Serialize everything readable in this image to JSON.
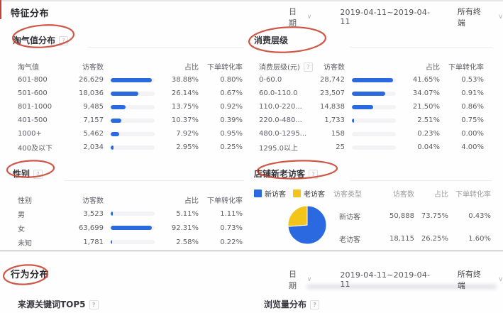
{
  "misc": {
    "help": "?"
  },
  "colors": {
    "accent_blue": "#2b69e0",
    "accent_yellow": "#f3c51a",
    "annotation_red": "#c8402f"
  },
  "header": {
    "title": "特征分布",
    "date_label": "日期",
    "date_range": "2019-04-11~2019-04-11",
    "terminal": "所有终端"
  },
  "panels": {
    "taoqi": {
      "title": "淘气值分布",
      "columns": [
        "淘气值",
        "访客数",
        "占比",
        "下单转化率"
      ],
      "rows": [
        {
          "label": "601-800",
          "visitors": "26,629",
          "bar": 38.88,
          "pct": "38.88%",
          "conv": "0.80%"
        },
        {
          "label": "501-600",
          "visitors": "18,036",
          "bar": 26.14,
          "pct": "26.14%",
          "conv": "0.67%"
        },
        {
          "label": "801-1000",
          "visitors": "9,485",
          "bar": 13.75,
          "pct": "13.75%",
          "conv": "0.92%"
        },
        {
          "label": "401-500",
          "visitors": "7,157",
          "bar": 10.37,
          "pct": "10.37%",
          "conv": "0.39%"
        },
        {
          "label": "1000+",
          "visitors": "5,462",
          "bar": 7.92,
          "pct": "7.92%",
          "conv": "0.95%"
        },
        {
          "label": "400及以下",
          "visitors": "2,034",
          "bar": 2.95,
          "pct": "2.95%",
          "conv": "0.25%"
        }
      ]
    },
    "consume": {
      "title": "消费层级",
      "columns": [
        "消费层级(元)",
        "访客数",
        "占比",
        "下单转化率"
      ],
      "rows": [
        {
          "label": "0-60.0",
          "visitors": "28,742",
          "bar": 41.65,
          "pct": "41.65%",
          "conv": "0.53%"
        },
        {
          "label": "60.0-110.0",
          "visitors": "23,507",
          "bar": 34.07,
          "pct": "34.07%",
          "conv": "0.91%"
        },
        {
          "label": "110.0-220...",
          "visitors": "14,838",
          "bar": 21.5,
          "pct": "21.50%",
          "conv": "0.86%"
        },
        {
          "label": "220.0-480...",
          "visitors": "1,733",
          "bar": 2.51,
          "pct": "2.51%",
          "conv": "0.75%"
        },
        {
          "label": "480.0-1295...",
          "visitors": "158",
          "bar": 0.23,
          "pct": "0.23%",
          "conv": "0.00%"
        },
        {
          "label": "1295.0以上",
          "visitors": "25",
          "bar": 0.04,
          "pct": "0.04%",
          "conv": "4.00%"
        }
      ]
    },
    "gender": {
      "title": "性别",
      "columns": [
        "性别",
        "访客数",
        "占比",
        "下单转化率"
      ],
      "rows": [
        {
          "label": "男",
          "visitors": "3,523",
          "bar": 5.11,
          "pct": "5.11%",
          "conv": "1.11%"
        },
        {
          "label": "女",
          "visitors": "63,699",
          "bar": 92.31,
          "pct": "92.31%",
          "conv": "0.73%"
        },
        {
          "label": "未知",
          "visitors": "1,781",
          "bar": 2.58,
          "pct": "2.58%",
          "conv": "0.22%"
        }
      ]
    },
    "visitors": {
      "title": "店铺新老访客",
      "legend": [
        {
          "label": "新访客",
          "color": "#2b69e0"
        },
        {
          "label": "老访客",
          "color": "#f3c51a"
        }
      ],
      "columns": [
        "访客类型",
        "访客数",
        "占比",
        "下单转化率"
      ],
      "rows": [
        {
          "label": "新访客",
          "visitors": "50,888",
          "pct": "73.75%",
          "conv": "0.43%"
        },
        {
          "label": "老访客",
          "visitors": "18,115",
          "pct": "26.25%",
          "conv": "1.60%"
        }
      ]
    }
  },
  "behavior": {
    "title": "行为分布",
    "date_label": "日期",
    "date_range": "2019-04-11~2019-04-11",
    "terminal": "所有终端",
    "sub_left": "来源关键词TOP5",
    "sub_right": "浏览量分布"
  }
}
